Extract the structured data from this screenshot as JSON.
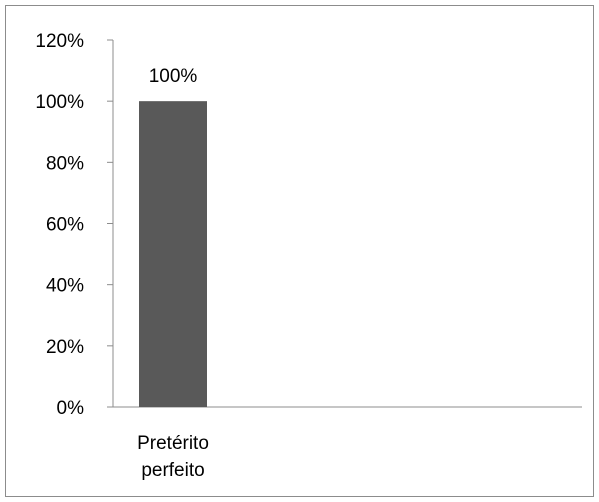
{
  "chart_data": {
    "type": "bar",
    "categories": [
      "Pretérito perfeito"
    ],
    "category_lines": [
      [
        "Pretérito",
        "perfeito"
      ]
    ],
    "values": [
      1.0
    ],
    "data_labels": [
      "100%"
    ],
    "ylim": [
      0,
      1.2
    ],
    "y_ticks": [
      0,
      0.2,
      0.4,
      0.6,
      0.8,
      1.0,
      1.2
    ],
    "y_tick_labels": [
      "0%",
      "20%",
      "40%",
      "60%",
      "80%",
      "100%",
      "120%"
    ],
    "title": "",
    "xlabel": "",
    "ylabel": "",
    "grid": false,
    "legend": "none",
    "bar_color": "#595959",
    "axis_color": "#8c8c8c",
    "text_color": "#000000"
  }
}
